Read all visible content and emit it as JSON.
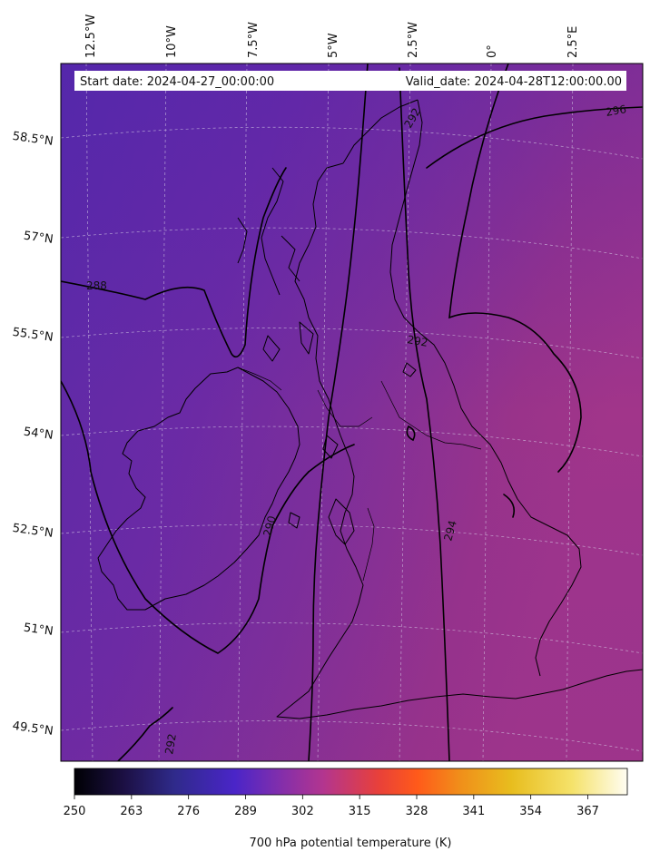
{
  "header": {
    "start_date": "Start date: 2024-04-27_00:00:00",
    "valid_date": "Valid_date: 2024-04-28T12:00:00.00"
  },
  "lon_ticks": [
    "12.5°W",
    "10°W",
    "7.5°W",
    "5°W",
    "2.5°W",
    "0°",
    "2.5°E"
  ],
  "lat_ticks": [
    "58.5°N",
    "57°N",
    "55.5°N",
    "54°N",
    "52.5°N",
    "51°N",
    "49.5°N"
  ],
  "contour_labels": [
    "296",
    "292",
    "288",
    "292",
    "290",
    "294",
    "292"
  ],
  "colorbar": {
    "label": "700 hPa potential temperature (K)",
    "min": 250,
    "max": 376,
    "ticks": [
      "250",
      "263",
      "276",
      "289",
      "302",
      "315",
      "328",
      "341",
      "354",
      "367"
    ],
    "colormap": "plasma-like",
    "colors": [
      "#000004",
      "#1c1044",
      "#2f2a8a",
      "#4a25c8",
      "#7a2db0",
      "#b3358f",
      "#e8403a",
      "#ff5a1a",
      "#f0901a",
      "#e8bd1e",
      "#f5e26a",
      "#fffdf2"
    ]
  }
}
